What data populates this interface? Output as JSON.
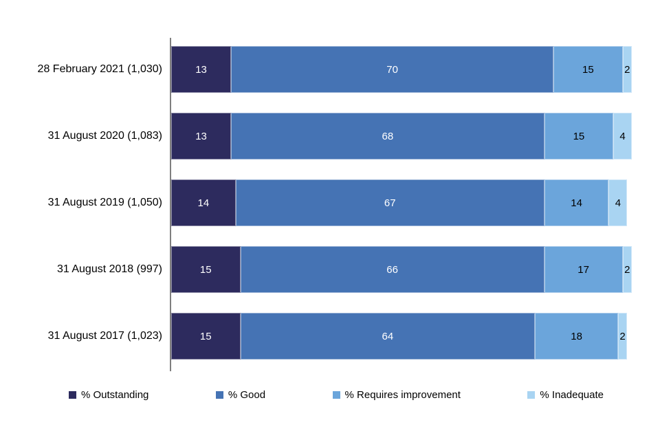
{
  "chart_data": {
    "type": "bar",
    "variant": "horizontal-stacked",
    "title": "",
    "xlabel": "",
    "ylabel": "",
    "xlim": [
      0,
      100
    ],
    "grid": false,
    "legend_position": "bottom",
    "value_labels": "inside-center",
    "categories": [
      "28 February 2021 (1,030)",
      "31 August 2020 (1,083)",
      "31 August 2019 (1,050)",
      "31 August 2018 (997)",
      "31 August 2017 (1,023)"
    ],
    "series": [
      {
        "name": "% Outstanding",
        "color": "#2D2B5E",
        "label_color": "#ffffff",
        "values": [
          13,
          13,
          14,
          15,
          15
        ]
      },
      {
        "name": "% Good",
        "color": "#4573B4",
        "label_color": "#ffffff",
        "values": [
          70,
          68,
          67,
          66,
          64
        ]
      },
      {
        "name": "% Requires improvement",
        "color": "#6BA5DB",
        "label_color": "#000000",
        "values": [
          15,
          15,
          14,
          17,
          18
        ]
      },
      {
        "name": "% Inadequate",
        "color": "#A9D4F2",
        "label_color": "#000000",
        "values": [
          2,
          4,
          4,
          2,
          2
        ]
      }
    ]
  }
}
